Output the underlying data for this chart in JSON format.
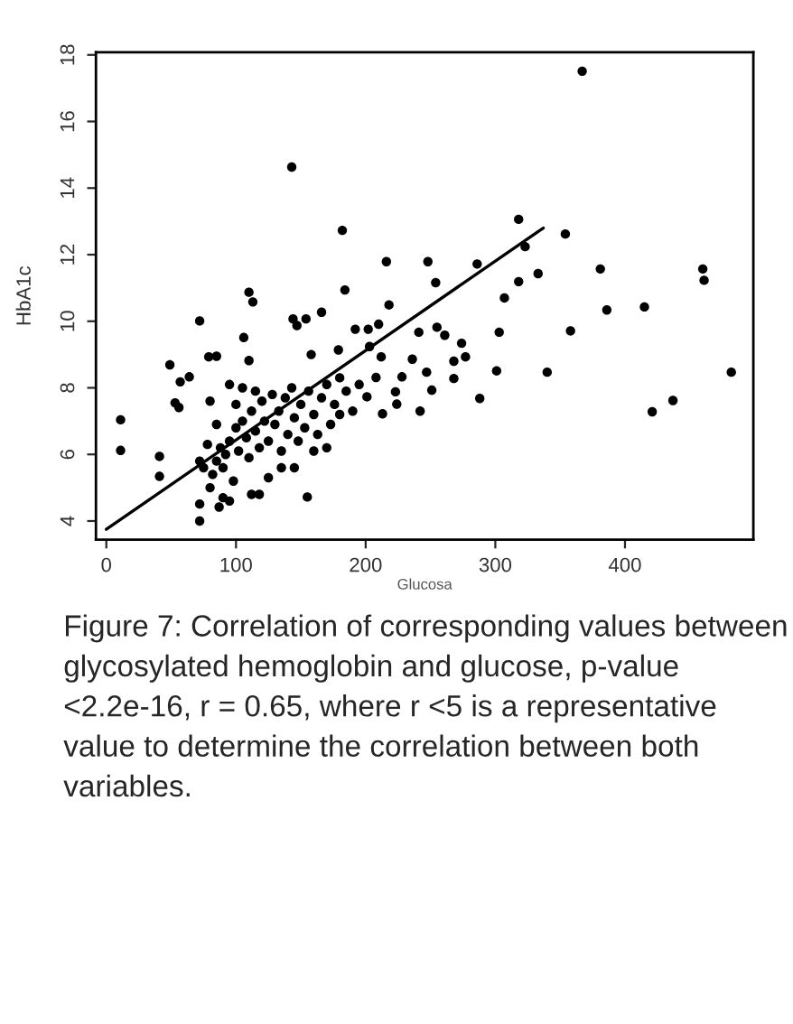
{
  "chart_data": {
    "type": "scatter",
    "xlabel": "Glucosa",
    "ylabel": "HbA1c",
    "xlim": [
      -8,
      499
    ],
    "ylim": [
      3.44,
      18.08
    ],
    "xticks": [
      0,
      100,
      200,
      300,
      400
    ],
    "yticks": [
      4,
      6,
      8,
      10,
      12,
      14,
      16,
      18
    ],
    "grid": false,
    "marker": "circle",
    "legend": false,
    "series": [
      {
        "color": "#000000",
        "x": [
          11,
          11,
          41,
          41,
          49,
          53,
          56,
          57,
          64,
          72,
          72,
          72,
          79,
          85,
          87,
          106,
          110,
          113,
          110,
          143,
          144,
          147,
          154,
          166,
          155,
          182,
          184,
          158,
          179,
          192,
          202,
          210,
          216,
          218,
          203,
          212,
          208,
          201,
          213,
          223,
          228,
          224,
          241,
          236,
          242,
          248,
          254,
          247,
          251,
          255,
          261,
          268,
          268,
          274,
          277,
          286,
          288,
          301,
          303,
          307,
          318,
          318,
          323,
          333,
          340,
          354,
          358,
          367,
          381,
          386,
          415,
          421,
          437,
          460,
          461,
          482,
          80,
          82,
          85,
          88,
          90,
          92,
          95,
          98,
          100,
          102,
          105,
          108,
          110,
          112,
          115,
          118,
          120,
          122,
          125,
          128,
          130,
          133,
          135,
          138,
          140,
          143,
          145,
          148,
          150,
          153,
          156,
          160,
          163,
          166,
          170,
          173,
          176,
          180,
          75,
          78,
          90,
          95,
          112,
          118,
          100,
          105,
          115,
          125,
          135,
          145,
          160,
          170,
          180,
          185,
          190,
          195,
          72,
          85,
          80,
          95
        ],
        "values": [
          7.04,
          6.12,
          5.94,
          5.34,
          8.69,
          7.55,
          7.41,
          8.18,
          8.33,
          10.01,
          4.51,
          4.0,
          8.93,
          8.95,
          4.42,
          9.51,
          10.87,
          10.58,
          8.82,
          14.63,
          10.07,
          9.87,
          10.07,
          10.27,
          4.72,
          12.73,
          10.94,
          9.0,
          9.14,
          9.76,
          9.76,
          9.91,
          11.79,
          10.49,
          9.24,
          8.93,
          8.31,
          7.73,
          7.22,
          7.88,
          8.33,
          7.51,
          9.67,
          8.86,
          7.3,
          11.79,
          11.16,
          8.47,
          7.93,
          9.82,
          9.58,
          8.28,
          8.8,
          9.34,
          8.93,
          11.72,
          7.68,
          8.51,
          9.67,
          10.7,
          13.06,
          11.19,
          12.24,
          11.43,
          8.47,
          12.62,
          9.71,
          17.51,
          11.57,
          10.34,
          10.43,
          7.28,
          7.62,
          11.57,
          11.23,
          8.47,
          5.0,
          5.4,
          5.8,
          6.2,
          5.6,
          6.0,
          6.4,
          5.2,
          6.8,
          6.1,
          7.0,
          6.5,
          5.9,
          7.3,
          6.7,
          6.2,
          7.6,
          7.0,
          6.4,
          7.8,
          6.9,
          7.3,
          6.1,
          7.7,
          6.6,
          8.0,
          7.1,
          6.4,
          7.5,
          6.8,
          7.9,
          7.2,
          6.6,
          7.7,
          8.1,
          6.9,
          7.5,
          8.3,
          5.6,
          6.3,
          4.7,
          4.6,
          4.8,
          4.8,
          7.5,
          8.0,
          7.9,
          5.3,
          5.6,
          5.6,
          6.1,
          6.2,
          7.2,
          7.9,
          7.3,
          8.1,
          5.8,
          6.9,
          7.6,
          8.1
        ]
      },
      {
        "type": "line",
        "color": "#000000",
        "marker": "none",
        "line_style": "solid",
        "x": [
          0,
          337
        ],
        "values": [
          3.75,
          12.8
        ]
      }
    ],
    "annotations": [
      "Figure 7: Correlation of corresponding values between glycosylated hemoglobin and glucose, p-value <2.2e-16, r = 0.65, where r <5 is a representative value to determine the correlation between both variables."
    ]
  }
}
